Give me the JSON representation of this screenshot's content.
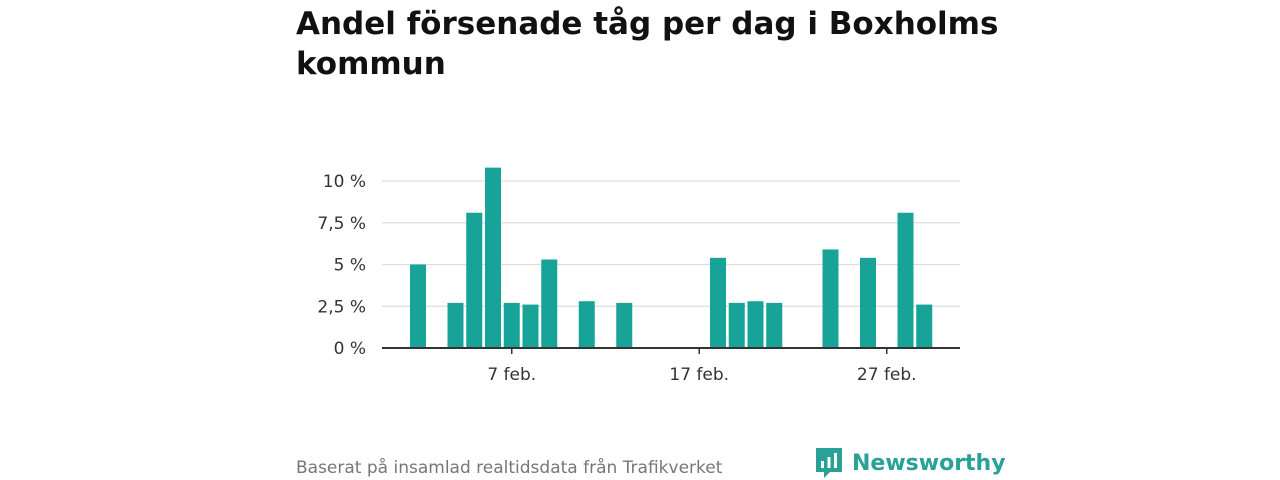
{
  "title": "Andel försenade tåg per dag i Boxholms kommun",
  "footer": {
    "source": "Baserat på insamlad realtidsdata från Trafikverket",
    "brand": "Newsworthy"
  },
  "colors": {
    "bar": "#17a398",
    "brand": "#2aa197",
    "grid": "#dddddd",
    "axis": "#333333"
  },
  "chart_data": {
    "type": "bar",
    "title": "Andel försenade tåg per dag i Boxholms kommun",
    "xlabel": "",
    "ylabel": "",
    "ylim": [
      0,
      10
    ],
    "yticks": [
      {
        "value": 0,
        "label": "0 %"
      },
      {
        "value": 2.5,
        "label": "2,5 %"
      },
      {
        "value": 5,
        "label": "5 %"
      },
      {
        "value": 7.5,
        "label": "7,5 %"
      },
      {
        "value": 10,
        "label": "10 %"
      }
    ],
    "xticks": [
      {
        "day": 7,
        "label": "7 feb."
      },
      {
        "day": 17,
        "label": "17 feb."
      },
      {
        "day": 27,
        "label": "27 feb."
      }
    ],
    "x_range_days": [
      1,
      28
    ],
    "grid": true,
    "bars": [
      {
        "day": 2,
        "value": 5.0
      },
      {
        "day": 4,
        "value": 2.7
      },
      {
        "day": 5,
        "value": 8.1
      },
      {
        "day": 6,
        "value": 10.8
      },
      {
        "day": 7,
        "value": 2.7
      },
      {
        "day": 8,
        "value": 2.6
      },
      {
        "day": 9,
        "value": 5.3
      },
      {
        "day": 11,
        "value": 2.8
      },
      {
        "day": 13,
        "value": 2.7
      },
      {
        "day": 18,
        "value": 5.4
      },
      {
        "day": 19,
        "value": 2.7
      },
      {
        "day": 20,
        "value": 2.8
      },
      {
        "day": 21,
        "value": 2.7
      },
      {
        "day": 24,
        "value": 5.9
      },
      {
        "day": 26,
        "value": 5.4
      },
      {
        "day": 28,
        "value": 8.1
      },
      {
        "day": 29,
        "value": 2.6
      }
    ]
  }
}
